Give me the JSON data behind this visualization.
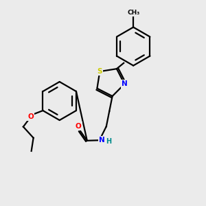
{
  "bg_color": "#ebebeb",
  "bond_color": "#000000",
  "atom_colors": {
    "S": "#cccc00",
    "N": "#0000ff",
    "O": "#ff0000",
    "C": "#000000",
    "H": "#008b8b"
  },
  "figsize": [
    3.0,
    3.0
  ],
  "dpi": 100
}
